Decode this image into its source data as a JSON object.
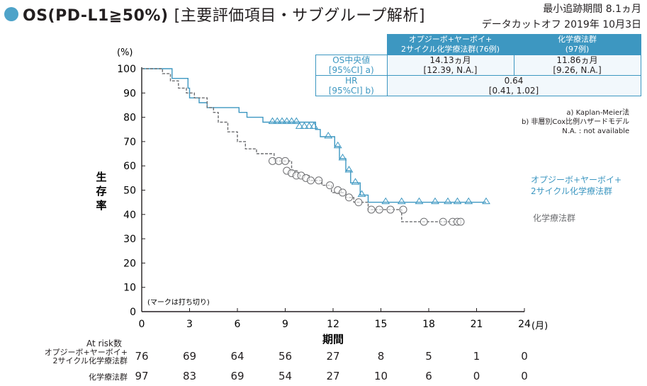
{
  "header": {
    "title_main": "OS",
    "title_paren": "(PD-L1≧50%)",
    "title_sub": "[主要評価項目・サブグループ解析]",
    "followup_line1": "最小追跡期間 8.1ヵ月",
    "followup_line2": "データカットオフ 2019年 10月3日"
  },
  "stats_table": {
    "col1_header_line1": "オプジーボ+ヤーボイ+",
    "col1_header_line2": "2サイクル化学療法群(76例)",
    "col2_header_line1": "化学療法群",
    "col2_header_line2": "(97例)",
    "row1_label_line1": "OS中央値",
    "row1_label_line2": "[95%CI] a)",
    "row1_col1_line1": "14.13ヵ月",
    "row1_col1_line2": "[12.39, N.A.]",
    "row1_col2_line1": "11.86ヵ月",
    "row1_col2_line2": "[9.26, N.A.]",
    "row2_label_line1": "HR",
    "row2_label_line2": "[95%CI] b)",
    "row2_value_line1": "0.64",
    "row2_value_line2": "[0.41, 1.02]"
  },
  "notes": {
    "a": "a) Kaplan-Meier法",
    "b": "b) 非層別Cox比例ハザードモデル",
    "na": "N.A. : not available"
  },
  "chart_data": {
    "type": "line",
    "title": "",
    "xlabel": "期間",
    "x_unit": "(月)",
    "ylabel": "生存率",
    "y_unit": "(%)",
    "xlim": [
      0,
      24
    ],
    "ylim": [
      0,
      100
    ],
    "x_ticks": [
      0,
      3,
      6,
      9,
      12,
      15,
      18,
      21,
      24
    ],
    "y_ticks": [
      0,
      10,
      20,
      30,
      40,
      50,
      60,
      70,
      80,
      90,
      100
    ],
    "grid": false,
    "censor_note": "(マークは打ち切り)",
    "series": [
      {
        "name_line1": "オプジーボ+ヤーボイ+",
        "name_line2": "2サイクル化学療法群",
        "color": "#3d97c1",
        "marker": "triangle",
        "steps": [
          [
            0,
            100
          ],
          [
            1.9,
            100
          ],
          [
            1.9,
            96
          ],
          [
            2.9,
            96
          ],
          [
            2.9,
            92
          ],
          [
            3.0,
            92
          ],
          [
            3.0,
            88
          ],
          [
            3.6,
            88
          ],
          [
            3.6,
            86
          ],
          [
            4.1,
            86
          ],
          [
            4.1,
            84
          ],
          [
            6.1,
            84
          ],
          [
            6.1,
            82
          ],
          [
            6.6,
            82
          ],
          [
            6.6,
            80
          ],
          [
            7.6,
            80
          ],
          [
            7.6,
            78
          ],
          [
            10.9,
            78
          ],
          [
            10.9,
            75
          ],
          [
            11.2,
            75
          ],
          [
            11.2,
            72
          ],
          [
            12.1,
            72
          ],
          [
            12.1,
            68
          ],
          [
            12.4,
            68
          ],
          [
            12.4,
            63
          ],
          [
            12.8,
            63
          ],
          [
            12.8,
            58
          ],
          [
            13.1,
            58
          ],
          [
            13.1,
            53
          ],
          [
            13.7,
            53
          ],
          [
            13.7,
            48
          ],
          [
            14.2,
            48
          ],
          [
            14.2,
            45
          ],
          [
            21.6,
            45
          ]
        ],
        "censored": [
          [
            8.2,
            78
          ],
          [
            8.5,
            78
          ],
          [
            8.8,
            78
          ],
          [
            9.1,
            78
          ],
          [
            9.4,
            78
          ],
          [
            9.7,
            78
          ],
          [
            9.9,
            76
          ],
          [
            10.2,
            76
          ],
          [
            10.5,
            76
          ],
          [
            10.8,
            76
          ],
          [
            11.7,
            72
          ],
          [
            12.3,
            68
          ],
          [
            12.6,
            63
          ],
          [
            13.0,
            58
          ],
          [
            13.4,
            53
          ],
          [
            13.8,
            48
          ],
          [
            15.3,
            45
          ],
          [
            16.3,
            45
          ],
          [
            17.4,
            45
          ],
          [
            18.4,
            45
          ],
          [
            19.2,
            45
          ],
          [
            19.8,
            45
          ],
          [
            20.5,
            45
          ],
          [
            21.6,
            45
          ]
        ]
      },
      {
        "name": "化学療法群",
        "color": "#6d6e71",
        "marker": "circle",
        "steps": [
          [
            0,
            100
          ],
          [
            1.3,
            100
          ],
          [
            1.3,
            98
          ],
          [
            1.8,
            98
          ],
          [
            1.8,
            95
          ],
          [
            2.3,
            95
          ],
          [
            2.3,
            92
          ],
          [
            2.8,
            92
          ],
          [
            2.8,
            90
          ],
          [
            3.3,
            90
          ],
          [
            3.3,
            88
          ],
          [
            4.1,
            88
          ],
          [
            4.1,
            84
          ],
          [
            4.5,
            84
          ],
          [
            4.5,
            82
          ],
          [
            4.8,
            82
          ],
          [
            4.8,
            78
          ],
          [
            5.4,
            78
          ],
          [
            5.4,
            74
          ],
          [
            6.0,
            74
          ],
          [
            6.0,
            70
          ],
          [
            6.5,
            70
          ],
          [
            6.5,
            67
          ],
          [
            7.2,
            67
          ],
          [
            7.2,
            65
          ],
          [
            8.3,
            65
          ],
          [
            8.3,
            62
          ],
          [
            9.4,
            62
          ],
          [
            9.4,
            58
          ],
          [
            9.8,
            58
          ],
          [
            9.8,
            56
          ],
          [
            10.5,
            56
          ],
          [
            10.5,
            54
          ],
          [
            11.3,
            54
          ],
          [
            11.3,
            52
          ],
          [
            11.9,
            52
          ],
          [
            11.9,
            49
          ],
          [
            12.8,
            49
          ],
          [
            12.8,
            47
          ],
          [
            13.3,
            47
          ],
          [
            13.3,
            45
          ],
          [
            14.2,
            45
          ],
          [
            14.2,
            42
          ],
          [
            16.3,
            42
          ],
          [
            16.3,
            37
          ],
          [
            20.0,
            37
          ]
        ],
        "censored": [
          [
            8.2,
            62
          ],
          [
            8.6,
            62
          ],
          [
            9.0,
            62
          ],
          [
            9.1,
            58
          ],
          [
            9.4,
            57
          ],
          [
            9.7,
            56
          ],
          [
            10.0,
            56
          ],
          [
            10.3,
            55
          ],
          [
            10.6,
            54
          ],
          [
            11.1,
            54
          ],
          [
            11.8,
            52
          ],
          [
            12.3,
            50
          ],
          [
            12.6,
            49
          ],
          [
            13.0,
            47
          ],
          [
            13.6,
            45
          ],
          [
            14.4,
            42
          ],
          [
            14.9,
            42
          ],
          [
            15.6,
            42
          ],
          [
            16.4,
            42
          ],
          [
            17.7,
            37
          ],
          [
            18.9,
            37
          ],
          [
            19.5,
            37
          ],
          [
            19.8,
            37
          ],
          [
            20.0,
            37
          ]
        ]
      }
    ],
    "at_risk": {
      "title": "At risk数",
      "times": [
        0,
        3,
        6,
        9,
        12,
        15,
        18,
        21,
        24
      ],
      "rows": [
        {
          "label_line1": "オプジーボ+ヤーボイ+",
          "label_line2": "2サイクル化学療法群",
          "values": [
            "76",
            "69",
            "64",
            "56",
            "27",
            "8",
            "5",
            "1",
            "0"
          ]
        },
        {
          "label_line1": "化学療法群",
          "values": [
            "97",
            "83",
            "69",
            "54",
            "27",
            "10",
            "6",
            "0",
            "0"
          ]
        }
      ]
    }
  }
}
